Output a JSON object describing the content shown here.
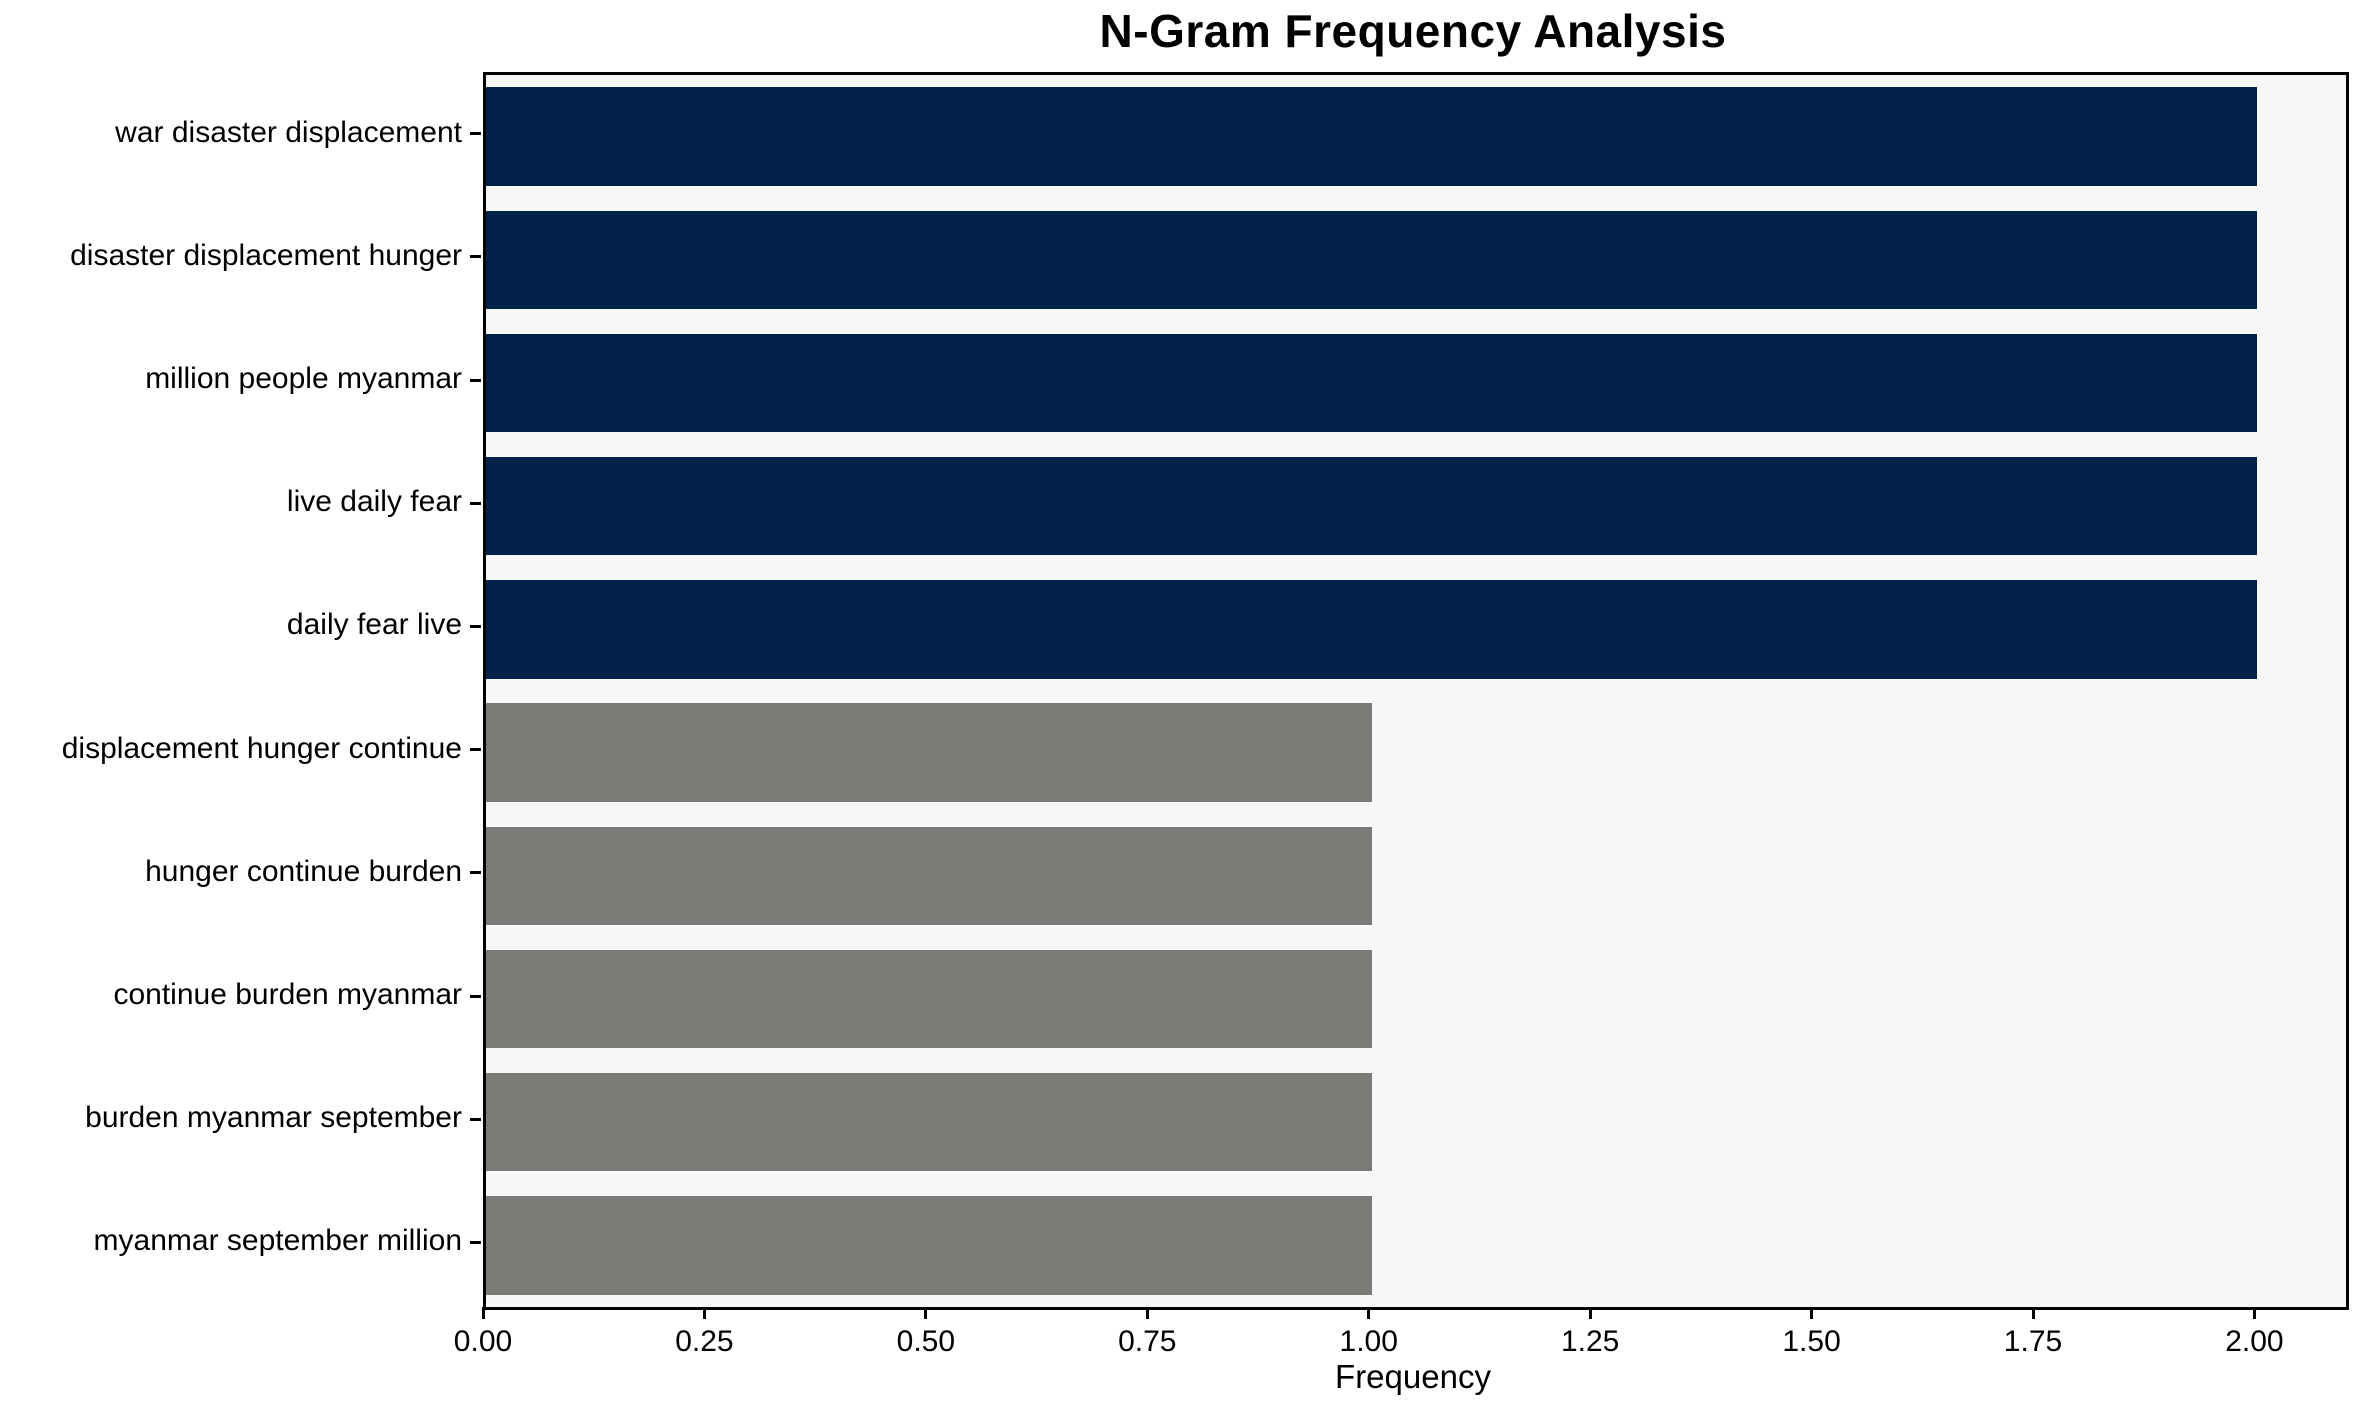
{
  "title": "N-Gram Frequency Analysis",
  "chart_data": {
    "type": "bar",
    "orientation": "horizontal",
    "title": "N-Gram Frequency Analysis",
    "xlabel": "Frequency",
    "ylabel": "",
    "categories": [
      "war disaster displacement",
      "disaster displacement hunger",
      "million people myanmar",
      "live daily fear",
      "daily fear live",
      "displacement hunger continue",
      "hunger continue burden",
      "continue burden myanmar",
      "burden myanmar september",
      "myanmar september million"
    ],
    "values": [
      2,
      2,
      2,
      2,
      2,
      1,
      1,
      1,
      1,
      1
    ],
    "bar_colors": [
      "#02224a",
      "#02224a",
      "#02224a",
      "#02224a",
      "#02224a",
      "#7b7b78",
      "#7b7b78",
      "#7b7b78",
      "#7b7b78",
      "#7b7b78"
    ],
    "x_ticks": [
      {
        "value": 0.0,
        "label": "0.00"
      },
      {
        "value": 0.25,
        "label": "0.25"
      },
      {
        "value": 0.5,
        "label": "0.50"
      },
      {
        "value": 0.75,
        "label": "0.75"
      },
      {
        "value": 1.0,
        "label": "1.00"
      },
      {
        "value": 1.25,
        "label": "1.25"
      },
      {
        "value": 1.5,
        "label": "1.50"
      },
      {
        "value": 1.75,
        "label": "1.75"
      },
      {
        "value": 2.0,
        "label": "2.00"
      }
    ],
    "xlim": [
      0,
      2.1
    ],
    "grid": false,
    "legend": null,
    "plot_background": "#f7f7f7",
    "spine_color": "#000000",
    "bar_band_fraction": 0.8
  }
}
